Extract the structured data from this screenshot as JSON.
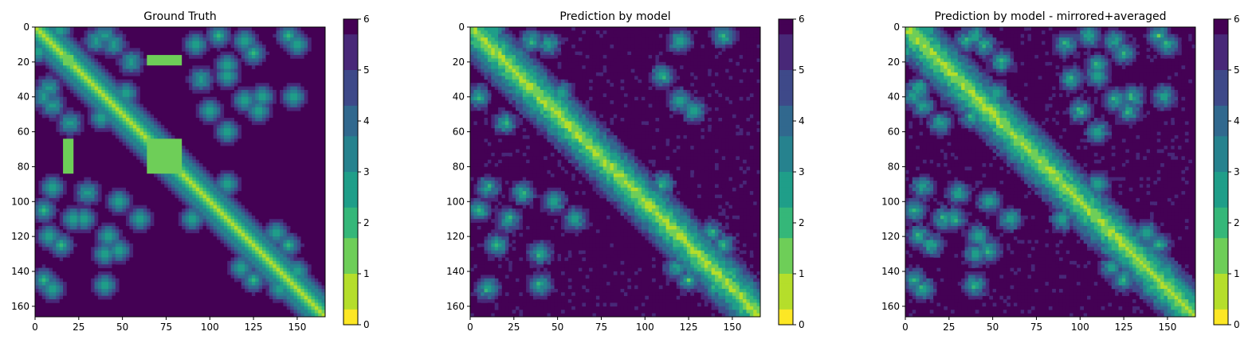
{
  "chart_data": [
    {
      "type": "heatmap",
      "title": "Ground Truth",
      "xlim": [
        0,
        166
      ],
      "ylim": [
        166,
        0
      ],
      "x_ticks": [
        "0",
        "25",
        "50",
        "75",
        "100",
        "125",
        "150"
      ],
      "y_ticks": [
        "0",
        "20",
        "40",
        "60",
        "80",
        "100",
        "120",
        "140",
        "160"
      ],
      "colorbar": {
        "range": [
          0,
          6
        ],
        "ticks": [
          "0",
          "1",
          "2",
          "3",
          "4",
          "5",
          "6"
        ],
        "colormap": "viridis_r"
      },
      "masked_regions_value": 1.2,
      "masked_regions": [
        [
          16,
          22,
          16,
          22
        ],
        [
          64,
          84,
          16,
          22
        ],
        [
          16,
          22,
          64,
          84
        ],
        [
          64,
          84,
          64,
          84
        ]
      ]
    },
    {
      "type": "heatmap",
      "title": "Prediction by model",
      "xlim": [
        0,
        166
      ],
      "ylim": [
        166,
        0
      ],
      "x_ticks": [
        "0",
        "25",
        "50",
        "75",
        "100",
        "125",
        "150"
      ],
      "y_ticks": [
        "0",
        "20",
        "40",
        "60",
        "80",
        "100",
        "120",
        "140",
        "160"
      ],
      "colorbar": {
        "range": [
          0,
          6
        ],
        "ticks": [
          "0",
          "1",
          "2",
          "3",
          "4",
          "5",
          "6"
        ],
        "colormap": "viridis_r"
      }
    },
    {
      "type": "heatmap",
      "title": "Prediction by model - mirrored+averaged",
      "xlim": [
        0,
        166
      ],
      "ylim": [
        166,
        0
      ],
      "x_ticks": [
        "0",
        "25",
        "50",
        "75",
        "100",
        "125",
        "150"
      ],
      "y_ticks": [
        "0",
        "20",
        "40",
        "60",
        "80",
        "100",
        "120",
        "140",
        "160"
      ],
      "colorbar": {
        "range": [
          0,
          6
        ],
        "ticks": [
          "0",
          "1",
          "2",
          "3",
          "4",
          "5",
          "6"
        ],
        "colormap": "viridis_r"
      }
    }
  ],
  "contacts": [
    [
      2,
      14
    ],
    [
      8,
      35
    ],
    [
      38,
      52
    ],
    [
      10,
      45
    ],
    [
      8,
      120
    ],
    [
      5,
      145
    ],
    [
      28,
      110
    ],
    [
      42,
      120
    ],
    [
      48,
      128
    ],
    [
      40,
      5
    ],
    [
      55,
      20
    ],
    [
      92,
      10
    ],
    [
      105,
      5
    ],
    [
      110,
      22
    ],
    [
      125,
      15
    ],
    [
      130,
      40
    ],
    [
      150,
      10
    ],
    [
      148,
      40
    ],
    [
      100,
      48
    ],
    [
      95,
      30
    ],
    [
      140,
      150
    ],
    [
      150,
      140
    ],
    [
      125,
      145
    ],
    [
      145,
      125
    ],
    [
      118,
      138
    ],
    [
      138,
      118
    ],
    [
      110,
      60
    ],
    [
      90,
      110
    ]
  ],
  "colors": {
    "viridis": [
      "#440154",
      "#482878",
      "#3e4989",
      "#31688e",
      "#26828e",
      "#1f9e89",
      "#35b779",
      "#6ece58",
      "#b5de2b",
      "#fde725"
    ],
    "axis": "#000000",
    "background": "#ffffff"
  }
}
